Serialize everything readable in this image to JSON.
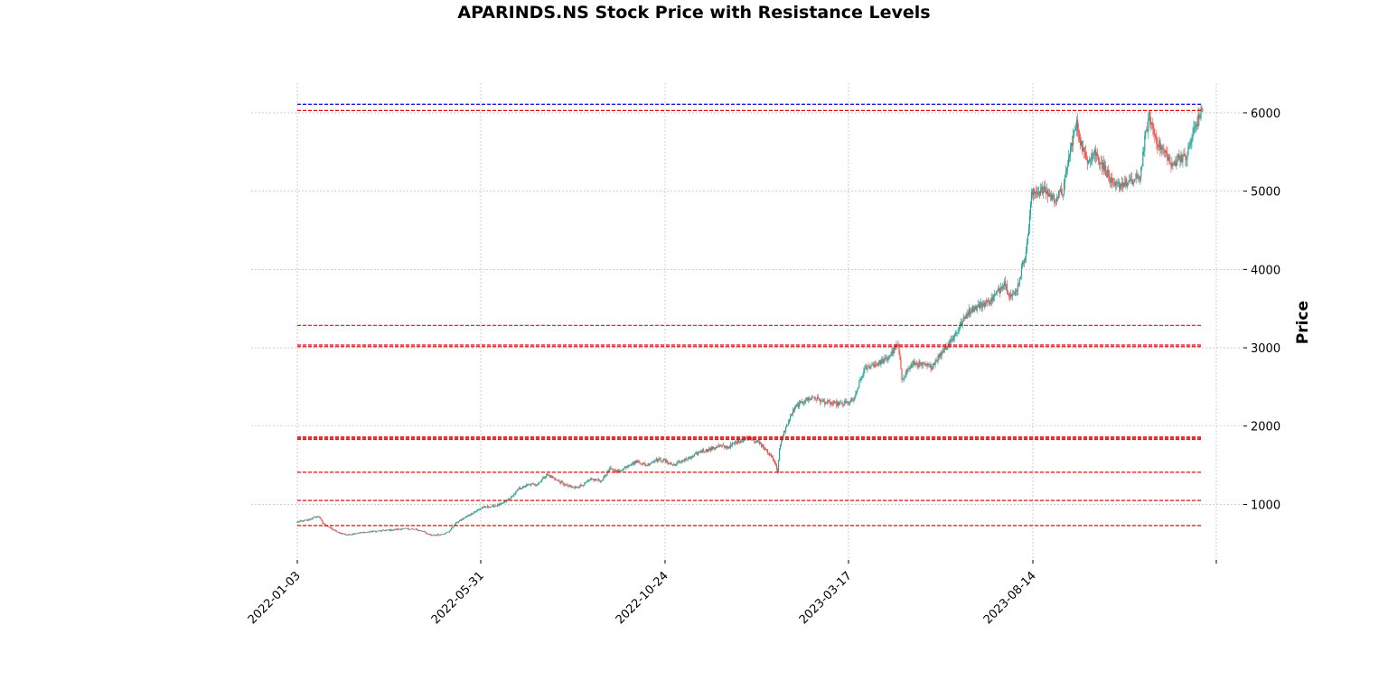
{
  "chart_data": {
    "type": "candlestick",
    "title": "APARINDS.NS Stock Price with Resistance Levels",
    "ylabel": "Price",
    "xlabel": "",
    "x_ticks": [
      "2022-01-03",
      "2022-05-31",
      "2022-10-24",
      "2023-03-17",
      "2023-08-14"
    ],
    "y_ticks": [
      1000,
      2000,
      3000,
      4000,
      5000,
      6000
    ],
    "ylim": [
      290,
      6380
    ],
    "grid": true,
    "colors": {
      "up": "#26a69a",
      "down": "#ef5350",
      "resistance": "#ff0000",
      "top_line": "#0000ff",
      "grid": "#b0b0b0"
    },
    "resistance_levels": [
      730,
      1050,
      1410,
      1830,
      1845,
      1860,
      3015,
      3035,
      3285,
      6030
    ],
    "top_level": 6110,
    "price_path": [
      [
        0,
        775
      ],
      [
        12,
        800
      ],
      [
        20,
        840
      ],
      [
        24,
        850
      ],
      [
        28,
        760
      ],
      [
        36,
        700
      ],
      [
        45,
        640
      ],
      [
        55,
        610
      ],
      [
        65,
        630
      ],
      [
        80,
        650
      ],
      [
        95,
        665
      ],
      [
        110,
        680
      ],
      [
        120,
        690
      ],
      [
        130,
        680
      ],
      [
        140,
        650
      ],
      [
        148,
        600
      ],
      [
        160,
        620
      ],
      [
        167,
        650
      ],
      [
        175,
        760
      ],
      [
        185,
        830
      ],
      [
        195,
        900
      ],
      [
        205,
        960
      ],
      [
        215,
        975
      ],
      [
        225,
        1000
      ],
      [
        235,
        1080
      ],
      [
        245,
        1200
      ],
      [
        255,
        1250
      ],
      [
        265,
        1260
      ],
      [
        275,
        1380
      ],
      [
        285,
        1320
      ],
      [
        295,
        1250
      ],
      [
        305,
        1210
      ],
      [
        315,
        1250
      ],
      [
        325,
        1320
      ],
      [
        335,
        1300
      ],
      [
        345,
        1450
      ],
      [
        355,
        1420
      ],
      [
        365,
        1500
      ],
      [
        375,
        1550
      ],
      [
        385,
        1500
      ],
      [
        395,
        1570
      ],
      [
        405,
        1560
      ],
      [
        415,
        1500
      ],
      [
        425,
        1560
      ],
      [
        435,
        1600
      ],
      [
        445,
        1680
      ],
      [
        455,
        1700
      ],
      [
        465,
        1750
      ],
      [
        475,
        1730
      ],
      [
        485,
        1800
      ],
      [
        495,
        1840
      ],
      [
        500,
        1850
      ],
      [
        505,
        1810
      ],
      [
        512,
        1760
      ],
      [
        520,
        1650
      ],
      [
        526,
        1570
      ],
      [
        530,
        1420
      ],
      [
        532,
        1700
      ],
      [
        536,
        1900
      ],
      [
        540,
        2000
      ],
      [
        545,
        2150
      ],
      [
        550,
        2250
      ],
      [
        560,
        2330
      ],
      [
        570,
        2370
      ],
      [
        580,
        2310
      ],
      [
        590,
        2290
      ],
      [
        600,
        2280
      ],
      [
        610,
        2310
      ],
      [
        615,
        2350
      ],
      [
        620,
        2550
      ],
      [
        625,
        2700
      ],
      [
        630,
        2760
      ],
      [
        640,
        2800
      ],
      [
        650,
        2850
      ],
      [
        655,
        2920
      ],
      [
        660,
        3010
      ],
      [
        663,
        3020
      ],
      [
        667,
        2600
      ],
      [
        672,
        2700
      ],
      [
        680,
        2800
      ],
      [
        690,
        2780
      ],
      [
        700,
        2760
      ],
      [
        705,
        2850
      ],
      [
        715,
        3000
      ],
      [
        725,
        3150
      ],
      [
        735,
        3350
      ],
      [
        740,
        3450
      ],
      [
        745,
        3500
      ],
      [
        755,
        3550
      ],
      [
        765,
        3600
      ],
      [
        775,
        3750
      ],
      [
        780,
        3850
      ],
      [
        785,
        3700
      ],
      [
        790,
        3650
      ],
      [
        795,
        3800
      ],
      [
        800,
        4050
      ],
      [
        805,
        4300
      ],
      [
        810,
        4950
      ],
      [
        815,
        5000
      ],
      [
        825,
        5000
      ],
      [
        835,
        4900
      ],
      [
        845,
        5000
      ],
      [
        850,
        5350
      ],
      [
        855,
        5650
      ],
      [
        860,
        5850
      ],
      [
        865,
        5600
      ],
      [
        870,
        5400
      ],
      [
        880,
        5500
      ],
      [
        890,
        5300
      ],
      [
        895,
        5200
      ],
      [
        900,
        5050
      ],
      [
        910,
        5100
      ],
      [
        920,
        5100
      ],
      [
        930,
        5200
      ],
      [
        935,
        5650
      ],
      [
        940,
        5950
      ],
      [
        945,
        5750
      ],
      [
        950,
        5600
      ],
      [
        960,
        5450
      ],
      [
        965,
        5300
      ],
      [
        970,
        5400
      ],
      [
        975,
        5450
      ],
      [
        980,
        5400
      ],
      [
        985,
        5600
      ],
      [
        990,
        5800
      ],
      [
        995,
        5950
      ],
      [
        998,
        6020
      ],
      [
        999,
        6080
      ]
    ]
  }
}
